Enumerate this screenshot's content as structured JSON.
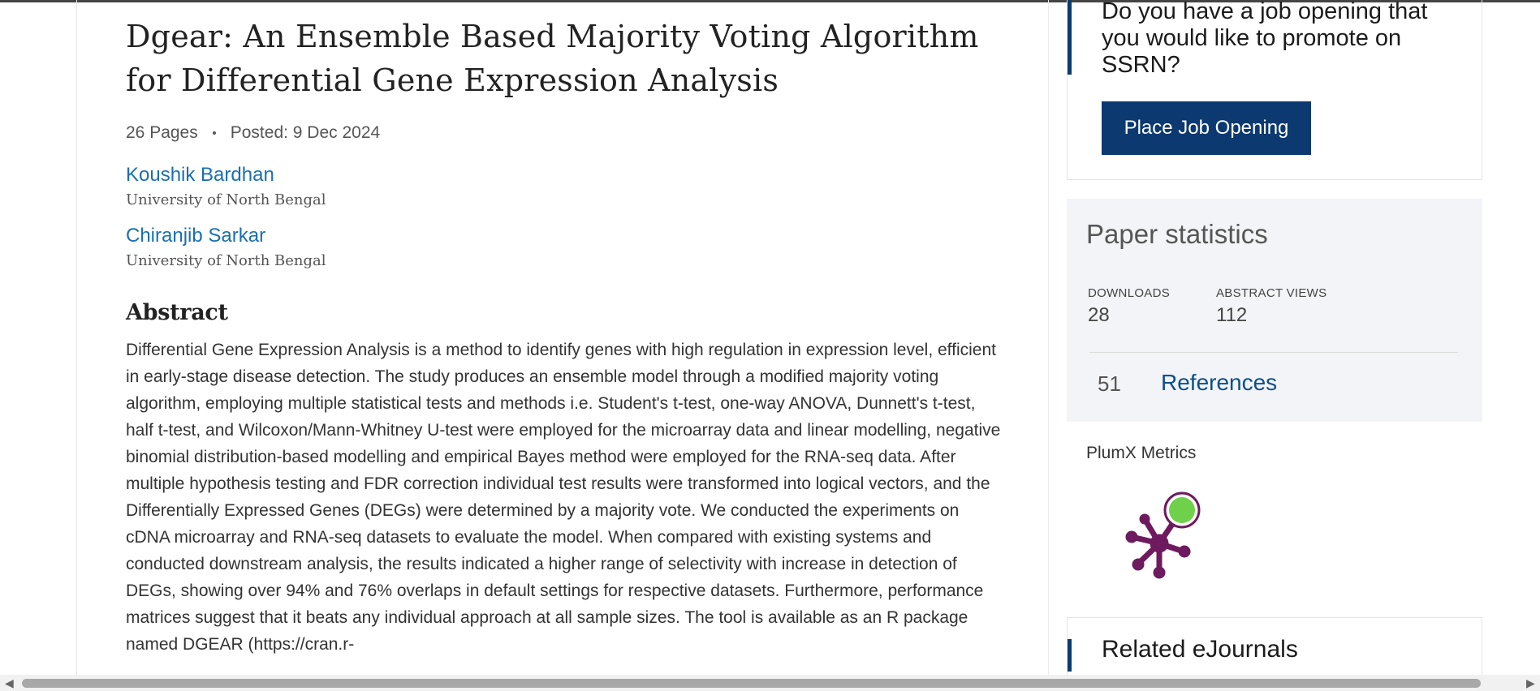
{
  "paper": {
    "title": "Dgear: An Ensemble Based Majority Voting Algorithm for Differential Gene Expression Analysis",
    "pages": "26 Pages",
    "posted": "Posted: 9 Dec 2024",
    "authors": [
      {
        "name": "Koushik Bardhan",
        "affiliation": "University of North Bengal"
      },
      {
        "name": "Chiranjib Sarkar",
        "affiliation": "University of North Bengal"
      }
    ],
    "abstract_heading": "Abstract",
    "abstract": "Differential Gene Expression Analysis is a method to identify genes with high regulation in expression level, efficient in early-stage disease detection. The study produces an ensemble model through a modified majority voting algorithm, employing multiple statistical tests and methods i.e. Student's t-test, one-way ANOVA, Dunnett's t-test, half t-test, and Wilcoxon/Mann-Whitney U-test were employed for the microarray data and linear modelling, negative binomial distribution-based modelling and empirical Bayes method were employed for the RNA-seq data. After multiple hypothesis testing and FDR correction individual test results were transformed into logical vectors, and the Differentially Expressed Genes (DEGs) were determined by a majority vote. We conducted the experiments on cDNA microarray and RNA-seq datasets to evaluate the model. When compared with existing systems and conducted downstream analysis, the results indicated a higher range of selectivity with increase in detection of DEGs, showing over 94% and 76% overlaps in default settings for respective datasets. Furthermore, performance matrices suggest that it beats any individual approach at all sample sizes. The tool is available as an R package named DGEAR (https://cran.r-"
  },
  "job": {
    "prompt": "Do you have a job opening that you would like to promote on SSRN?",
    "button": "Place Job Opening"
  },
  "stats": {
    "heading": "Paper statistics",
    "downloads_label": "DOWNLOADS",
    "downloads": "28",
    "views_label": "ABSTRACT VIEWS",
    "views": "112",
    "references_count": "51",
    "references_label": "References"
  },
  "plumx": {
    "label": "PlumX Metrics",
    "icon": "plumx-logo-icon"
  },
  "related": {
    "heading": "Related eJournals"
  },
  "colors": {
    "accent": "#0b3970",
    "link": "#1a6fb0",
    "plumx_purple": "#6e1a5e",
    "plumx_green": "#6fd14a"
  }
}
